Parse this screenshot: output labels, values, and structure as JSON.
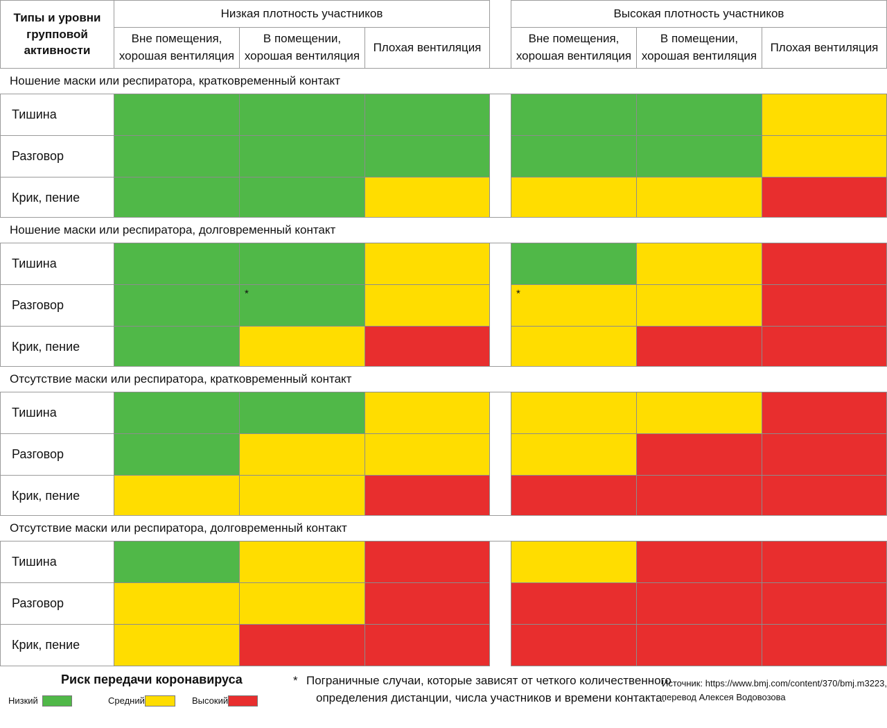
{
  "header": {
    "corner": "Типы и уровни групповой активности",
    "low_density": "Низкая плотность участников",
    "high_density": "Высокая плотность участников",
    "settings": [
      "Вне помещения, хорошая вентиляция",
      "В помещении, хорошая вентиляция",
      "Плохая вентиляция"
    ]
  },
  "colors": {
    "low": "#50b848",
    "medium": "#ffdd00",
    "high": "#e82e2e"
  },
  "chart_data": {
    "type": "heatmap",
    "title": "",
    "risk_scale": [
      "low",
      "medium",
      "high"
    ],
    "sections": [
      {
        "title": "Ношение маски или респиратора, кратковременный контакт",
        "rows": [
          {
            "label": "Тишина",
            "low_density": [
              "low",
              "low",
              "low"
            ],
            "high_density": [
              "low",
              "low",
              "medium"
            ]
          },
          {
            "label": "Разговор",
            "low_density": [
              "low",
              "low",
              "low"
            ],
            "high_density": [
              "low",
              "low",
              "medium"
            ]
          },
          {
            "label": "Крик, пение",
            "low_density": [
              "low",
              "low",
              "medium"
            ],
            "high_density": [
              "medium",
              "medium",
              "high"
            ]
          }
        ]
      },
      {
        "title": "Ношение маски или респиратора, долговременный контакт",
        "rows": [
          {
            "label": "Тишина",
            "low_density": [
              "low",
              "low",
              "medium"
            ],
            "high_density": [
              "low",
              "medium",
              "high"
            ]
          },
          {
            "label": "Разговор",
            "low_density": [
              "low",
              "low",
              "medium"
            ],
            "high_density": [
              "medium",
              "medium",
              "high"
            ],
            "borderline_low": [
              1
            ],
            "borderline_high": [
              0
            ]
          },
          {
            "label": "Крик, пение",
            "low_density": [
              "low",
              "medium",
              "high"
            ],
            "high_density": [
              "medium",
              "high",
              "high"
            ]
          }
        ]
      },
      {
        "title": "Отсутствие маски или респиратора, кратковременный контакт",
        "rows": [
          {
            "label": "Тишина",
            "low_density": [
              "low",
              "low",
              "medium"
            ],
            "high_density": [
              "medium",
              "medium",
              "high"
            ]
          },
          {
            "label": "Разговор",
            "low_density": [
              "low",
              "medium",
              "medium"
            ],
            "high_density": [
              "medium",
              "high",
              "high"
            ]
          },
          {
            "label": "Крик, пение",
            "low_density": [
              "medium",
              "medium",
              "high"
            ],
            "high_density": [
              "high",
              "high",
              "high"
            ]
          }
        ]
      },
      {
        "title": "Отсутствие маски или респиратора, долговременный контакт",
        "rows": [
          {
            "label": "Тишина",
            "low_density": [
              "low",
              "medium",
              "high"
            ],
            "high_density": [
              "medium",
              "high",
              "high"
            ]
          },
          {
            "label": "Разговор",
            "low_density": [
              "medium",
              "medium",
              "high"
            ],
            "high_density": [
              "high",
              "high",
              "high"
            ]
          },
          {
            "label": "Крик, пение",
            "low_density": [
              "medium",
              "high",
              "high"
            ],
            "high_density": [
              "high",
              "high",
              "high"
            ]
          }
        ]
      }
    ]
  },
  "legend": {
    "title": "Риск передачи коронавируса",
    "low": "Низкий",
    "medium": "Средний",
    "high": "Высокий"
  },
  "footnote": {
    "star": "*",
    "line1": "Пограничные случаи, которые зависят от четкого количественного",
    "line2": "определения дистанции, числа участников и времени контакта."
  },
  "source": {
    "line1": "Источник: https://www.bmj.com/content/370/bmj.m3223,",
    "line2": "перевод Алексея Водовозова"
  }
}
